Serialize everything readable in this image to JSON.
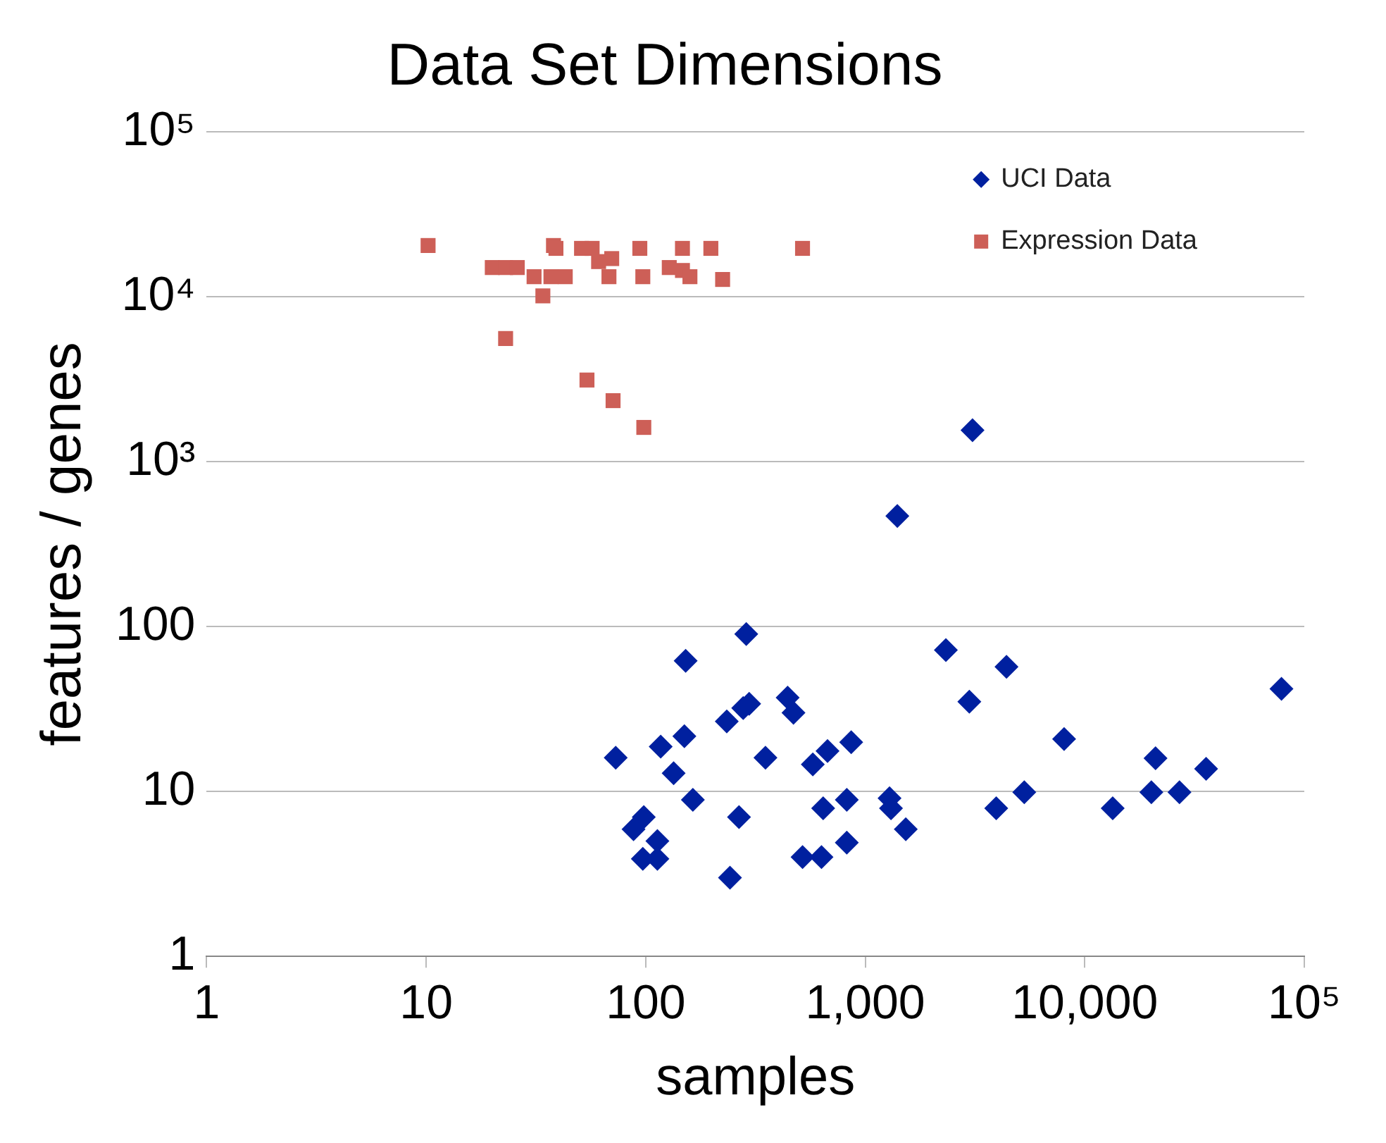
{
  "chart_data": {
    "type": "scatter",
    "title": "Data Set Dimensions",
    "xlabel": "samples",
    "ylabel": "features / genes",
    "log": "xy",
    "grid": "y",
    "legend": "top right",
    "xlim": [
      1,
      100000
    ],
    "xticks": [
      1,
      10,
      100,
      {
        "value": 1000,
        "label": "1,000"
      },
      {
        "value": 10000,
        "label": "10,000"
      },
      {
        "value": 100000,
        "label": "10⁵"
      }
    ],
    "ylim": [
      1,
      100000
    ],
    "yticks": [
      1,
      10,
      100,
      {
        "value": 1000,
        "label": "10³"
      },
      {
        "value": 10000,
        "label": "10⁴"
      },
      {
        "value": 100000,
        "label": "10⁵"
      }
    ],
    "series": [
      {
        "name": "UCI Data",
        "color": "#00209f",
        "marker": "diamond",
        "x": [
          73,
          88,
          98,
          97,
          113,
          113,
          117,
          134,
          150,
          152,
          164,
          234,
          242,
          266,
          278,
          296,
          287,
          351,
          443,
          471,
          518,
          577,
          632,
          643,
          673,
          824,
          824,
          863,
          1290,
          1310,
          1400,
          1530,
          2330,
          2980,
          3080,
          4400,
          3950,
          5300,
          8050,
          13400,
          20100,
          21000,
          27000,
          35700,
          78700
        ],
        "values": [
          16,
          5.9,
          7,
          3.9,
          5,
          3.9,
          18.7,
          12.9,
          21.6,
          62,
          8.9,
          26.6,
          3,
          7,
          32,
          34,
          90,
          16,
          37,
          30,
          4,
          14.6,
          4,
          7.9,
          17.6,
          8.9,
          4.9,
          19.9,
          9.1,
          7.9,
          468,
          5.9,
          72,
          35,
          1550,
          57,
          7.9,
          9.9,
          20.8,
          7.9,
          9.9,
          15.9,
          9.9,
          13.7,
          41.9
        ]
      },
      {
        "name": "Expression Data",
        "color": "#cd5f57",
        "marker": "square",
        "x": [
          10.2,
          20,
          23,
          26,
          31,
          37,
          43,
          34,
          38,
          39,
          51,
          57,
          61,
          70,
          68,
          94,
          97,
          128,
          147,
          147,
          159,
          198,
          224,
          518,
          23,
          54,
          71,
          98
        ],
        "values": [
          20400,
          15000,
          15000,
          15000,
          13200,
          13200,
          13200,
          10100,
          20400,
          19600,
          19600,
          19600,
          16300,
          17000,
          13200,
          19600,
          13200,
          15000,
          19600,
          14400,
          13200,
          19600,
          12700,
          19600,
          5570,
          3120,
          2340,
          1610
        ]
      }
    ]
  }
}
